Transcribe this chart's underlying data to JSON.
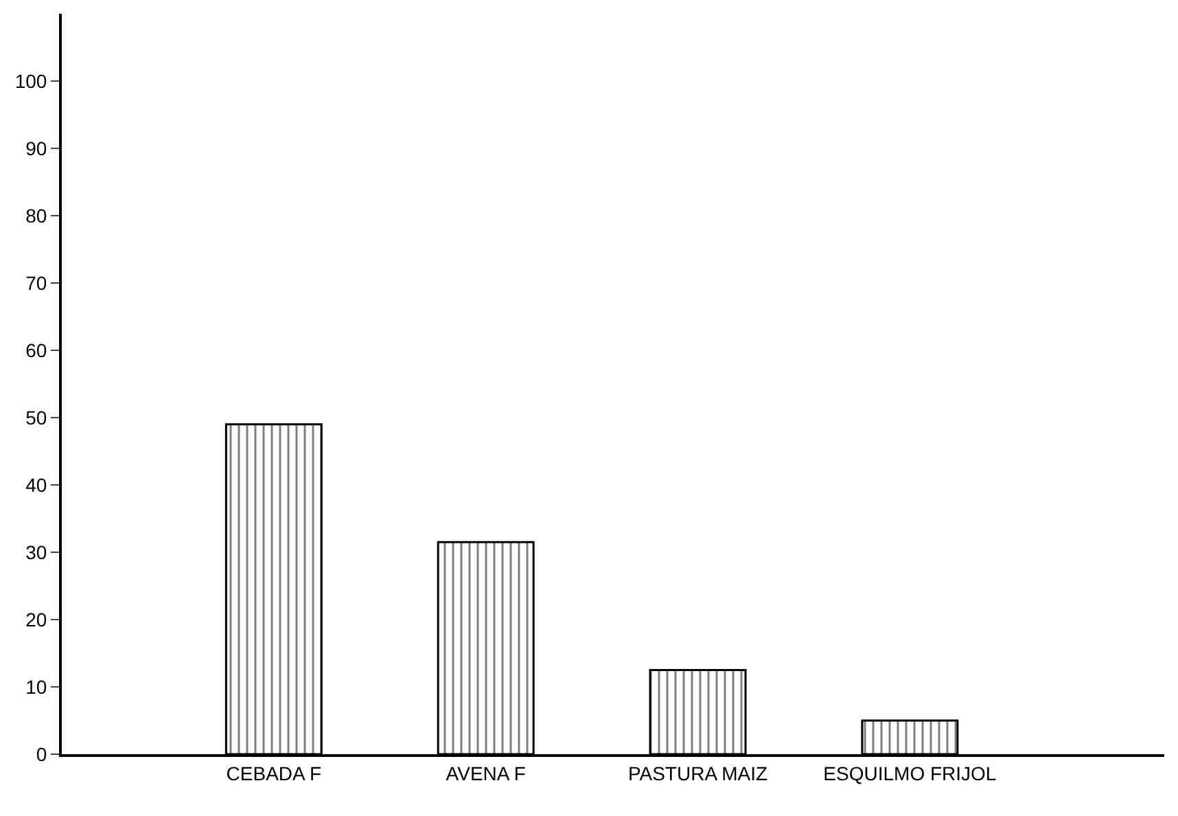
{
  "chart_data": {
    "type": "bar",
    "categories": [
      "CEBADA F",
      "AVENA F",
      "PASTURA MAIZ",
      "ESQUILMO FRIJOL"
    ],
    "values": [
      49,
      31.5,
      12.5,
      5
    ],
    "color": "#000000",
    "ylim": [
      0,
      110
    ],
    "yticks": [
      0,
      10,
      20,
      30,
      40,
      50,
      60,
      70,
      80,
      90,
      100
    ]
  }
}
